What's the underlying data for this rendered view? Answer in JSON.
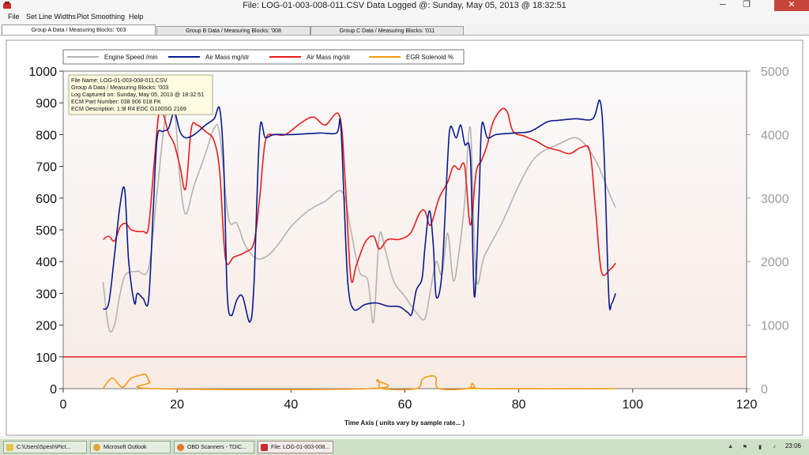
{
  "window": {
    "title": "File: LOG-01-003-008-011.CSV Data Logged @: Sunday, May 05, 2013 @ 18:32:51",
    "minimize": "─",
    "restore": "❐",
    "close": "✕"
  },
  "menu": [
    "File",
    "Set Line Widths",
    "Plot Smoothing",
    "Help"
  ],
  "tabs": [
    "Group A Data / Measuring Blocks: '003",
    "Group B Data / Measuring Blocks: '008",
    "Group C Data / Measuring Blocks: '011"
  ],
  "info_box": [
    "File Name: LOG-01-003-008-011.CSV",
    "Group A Data / Measuring Blocks: '003",
    "Log Captured on: Sunday, May 05, 2013 @ 18:32:51",
    "ECM Part Number: 038 906 018 FK",
    "ECM Description: 1.9l R4 EDC G100SG  2169"
  ],
  "taskbar": {
    "items": [
      "C:\\Users\\Spesh\\Pict...",
      "Microsoft Outlook",
      "OBD Scanners - TDIC...",
      "File: LOG-01-003-008..."
    ],
    "clock": "23:06"
  },
  "chart_data": {
    "type": "line",
    "xlabel": "Time Axis ( units vary by sample rate... )",
    "xlim": [
      0,
      120
    ],
    "x_ticks": [
      0,
      20,
      40,
      60,
      80,
      100,
      120
    ],
    "ylim_left": [
      0,
      1000
    ],
    "y_ticks_left": [
      0,
      100,
      200,
      300,
      400,
      500,
      600,
      700,
      800,
      900,
      1000
    ],
    "ylim_right": [
      0,
      5000
    ],
    "y_ticks_right": [
      0,
      1000,
      2000,
      3000,
      4000,
      5000
    ],
    "legend_position": "top",
    "threshold_line": {
      "y": 100,
      "color": "#e41b1b"
    },
    "series": [
      {
        "name": "Engine Speed /min",
        "color": "#b4b4b4",
        "axis": "right",
        "points": [
          [
            7,
            1680
          ],
          [
            8,
            950
          ],
          [
            9,
            1000
          ],
          [
            10,
            1500
          ],
          [
            11,
            1800
          ],
          [
            13,
            1850
          ],
          [
            15,
            1900
          ],
          [
            16.5,
            3100
          ],
          [
            18,
            4300
          ],
          [
            19.5,
            4400
          ],
          [
            20.5,
            3300
          ],
          [
            21.5,
            2750
          ],
          [
            23,
            3200
          ],
          [
            25,
            3700
          ],
          [
            26.5,
            4100
          ],
          [
            27.5,
            4000
          ],
          [
            29,
            2700
          ],
          [
            30.5,
            2600
          ],
          [
            32,
            2250
          ],
          [
            34,
            2050
          ],
          [
            36,
            2100
          ],
          [
            38,
            2300
          ],
          [
            40,
            2550
          ],
          [
            43,
            2800
          ],
          [
            46,
            2950
          ],
          [
            49,
            3100
          ],
          [
            50.5,
            2500
          ],
          [
            52,
            1850
          ],
          [
            53.5,
            1700
          ],
          [
            54.5,
            1050
          ],
          [
            55.5,
            2400
          ],
          [
            56.5,
            2200
          ],
          [
            58,
            1700
          ],
          [
            60,
            1450
          ],
          [
            62,
            1200
          ],
          [
            63.5,
            1100
          ],
          [
            64.5,
            1550
          ],
          [
            65.5,
            2000
          ],
          [
            66.5,
            1800
          ],
          [
            67.5,
            2450
          ],
          [
            68.5,
            1700
          ],
          [
            69.5,
            2150
          ],
          [
            70.5,
            2950
          ],
          [
            71.5,
            4100
          ],
          [
            72.5,
            1750
          ],
          [
            74,
            2100
          ],
          [
            77,
            2600
          ],
          [
            80,
            3200
          ],
          [
            83,
            3650
          ],
          [
            87,
            3850
          ],
          [
            90,
            3950
          ],
          [
            92,
            3800
          ],
          [
            94,
            3500
          ],
          [
            96,
            3050
          ],
          [
            97,
            2850
          ]
        ]
      },
      {
        "name": "Air Mass mg/str",
        "color": "#0a1a8c",
        "axis": "left",
        "points": [
          [
            7,
            250
          ],
          [
            8,
            270
          ],
          [
            9,
            420
          ],
          [
            10,
            580
          ],
          [
            10.8,
            625
          ],
          [
            11.5,
            400
          ],
          [
            12.5,
            270
          ],
          [
            13,
            300
          ],
          [
            14,
            285
          ],
          [
            15,
            280
          ],
          [
            15.8,
            560
          ],
          [
            16.5,
            790
          ],
          [
            17.5,
            810
          ],
          [
            18.5,
            820
          ],
          [
            19.5,
            870
          ],
          [
            20.5,
            810
          ],
          [
            21.5,
            790
          ],
          [
            23,
            800
          ],
          [
            25,
            830
          ],
          [
            26.5,
            850
          ],
          [
            27.5,
            880
          ],
          [
            28.2,
            700
          ],
          [
            28.8,
            300
          ],
          [
            29.5,
            230
          ],
          [
            30.5,
            280
          ],
          [
            31.5,
            290
          ],
          [
            32.8,
            210
          ],
          [
            33.5,
            330
          ],
          [
            34.5,
            810
          ],
          [
            35.5,
            790
          ],
          [
            37,
            800
          ],
          [
            40,
            800
          ],
          [
            45,
            805
          ],
          [
            48,
            805
          ],
          [
            48.7,
            840
          ],
          [
            49.3,
            600
          ],
          [
            50,
            330
          ],
          [
            51,
            250
          ],
          [
            53,
            265
          ],
          [
            55,
            270
          ],
          [
            57,
            260
          ],
          [
            59,
            258
          ],
          [
            60.5,
            240
          ],
          [
            61.2,
            235
          ],
          [
            62,
            310
          ],
          [
            63,
            345
          ],
          [
            63.5,
            440
          ],
          [
            64.3,
            560
          ],
          [
            65,
            450
          ],
          [
            65.5,
            290
          ],
          [
            66.5,
            365
          ],
          [
            67.5,
            720
          ],
          [
            68,
            825
          ],
          [
            69,
            790
          ],
          [
            69.8,
            830
          ],
          [
            70.5,
            770
          ],
          [
            71.5,
            730
          ],
          [
            72.2,
            290
          ],
          [
            73,
            590
          ],
          [
            73.5,
            830
          ],
          [
            74.5,
            790
          ],
          [
            76,
            800
          ],
          [
            79,
            805
          ],
          [
            82,
            810
          ],
          [
            85,
            840
          ],
          [
            87,
            845
          ],
          [
            90,
            850
          ],
          [
            93,
            850
          ],
          [
            94.3,
            905
          ],
          [
            95,
            730
          ],
          [
            95.8,
            290
          ],
          [
            96.3,
            268
          ],
          [
            97,
            300
          ]
        ]
      },
      {
        "name": "Air Mass mg/str",
        "color": "#e81c1c",
        "axis": "left",
        "points": [
          [
            7,
            470
          ],
          [
            8,
            480
          ],
          [
            9,
            465
          ],
          [
            10,
            510
          ],
          [
            11,
            520
          ],
          [
            12,
            500
          ],
          [
            14,
            495
          ],
          [
            15,
            510
          ],
          [
            16,
            715
          ],
          [
            17,
            880
          ],
          [
            18.5,
            805
          ],
          [
            19.5,
            770
          ],
          [
            20.5,
            700
          ],
          [
            21.5,
            630
          ],
          [
            22.5,
            820
          ],
          [
            23.5,
            830
          ],
          [
            25,
            810
          ],
          [
            26.5,
            780
          ],
          [
            27.5,
            680
          ],
          [
            28.5,
            410
          ],
          [
            30,
            415
          ],
          [
            32,
            430
          ],
          [
            33.5,
            460
          ],
          [
            34.5,
            600
          ],
          [
            35.5,
            780
          ],
          [
            37,
            800
          ],
          [
            39,
            800
          ],
          [
            42,
            840
          ],
          [
            44,
            855
          ],
          [
            46,
            830
          ],
          [
            48.5,
            860
          ],
          [
            49.5,
            660
          ],
          [
            50.5,
            350
          ],
          [
            51.5,
            390
          ],
          [
            53,
            460
          ],
          [
            54.5,
            480
          ],
          [
            55.5,
            440
          ],
          [
            57,
            470
          ],
          [
            59,
            470
          ],
          [
            61,
            490
          ],
          [
            62.5,
            550
          ],
          [
            63.5,
            560
          ],
          [
            64.5,
            515
          ],
          [
            66,
            600
          ],
          [
            67.5,
            650
          ],
          [
            68.5,
            700
          ],
          [
            69.5,
            690
          ],
          [
            70.5,
            700
          ],
          [
            71.5,
            515
          ],
          [
            72.5,
            680
          ],
          [
            73.5,
            720
          ],
          [
            74.5,
            770
          ],
          [
            75.5,
            840
          ],
          [
            77,
            880
          ],
          [
            78,
            870
          ],
          [
            79,
            810
          ],
          [
            81,
            795
          ],
          [
            83,
            780
          ],
          [
            85,
            760
          ],
          [
            87,
            750
          ],
          [
            89,
            740
          ],
          [
            91,
            760
          ],
          [
            92.5,
            745
          ],
          [
            93.5,
            560
          ],
          [
            94.5,
            370
          ],
          [
            96,
            375
          ],
          [
            97,
            395
          ]
        ]
      },
      {
        "name": "EGR Solenoid %",
        "color": "#f59a12",
        "axis": "right",
        "points": [
          [
            7,
            0
          ],
          [
            8,
            130
          ],
          [
            8.8,
            160
          ],
          [
            9.8,
            60
          ],
          [
            10.5,
            20
          ],
          [
            11.2,
            90
          ],
          [
            12,
            170
          ],
          [
            13.5,
            210
          ],
          [
            14.5,
            220
          ],
          [
            15.2,
            100
          ],
          [
            16,
            0
          ],
          [
            54,
            0
          ],
          [
            55,
            130
          ],
          [
            55.5,
            110
          ],
          [
            56,
            0
          ],
          [
            62,
            0
          ],
          [
            63,
            140
          ],
          [
            64,
            190
          ],
          [
            65,
            200
          ],
          [
            65.5,
            160
          ],
          [
            66,
            0
          ],
          [
            71,
            0
          ],
          [
            71.8,
            80
          ],
          [
            72.3,
            20
          ],
          [
            73,
            0
          ],
          [
            97,
            0
          ]
        ]
      }
    ]
  }
}
